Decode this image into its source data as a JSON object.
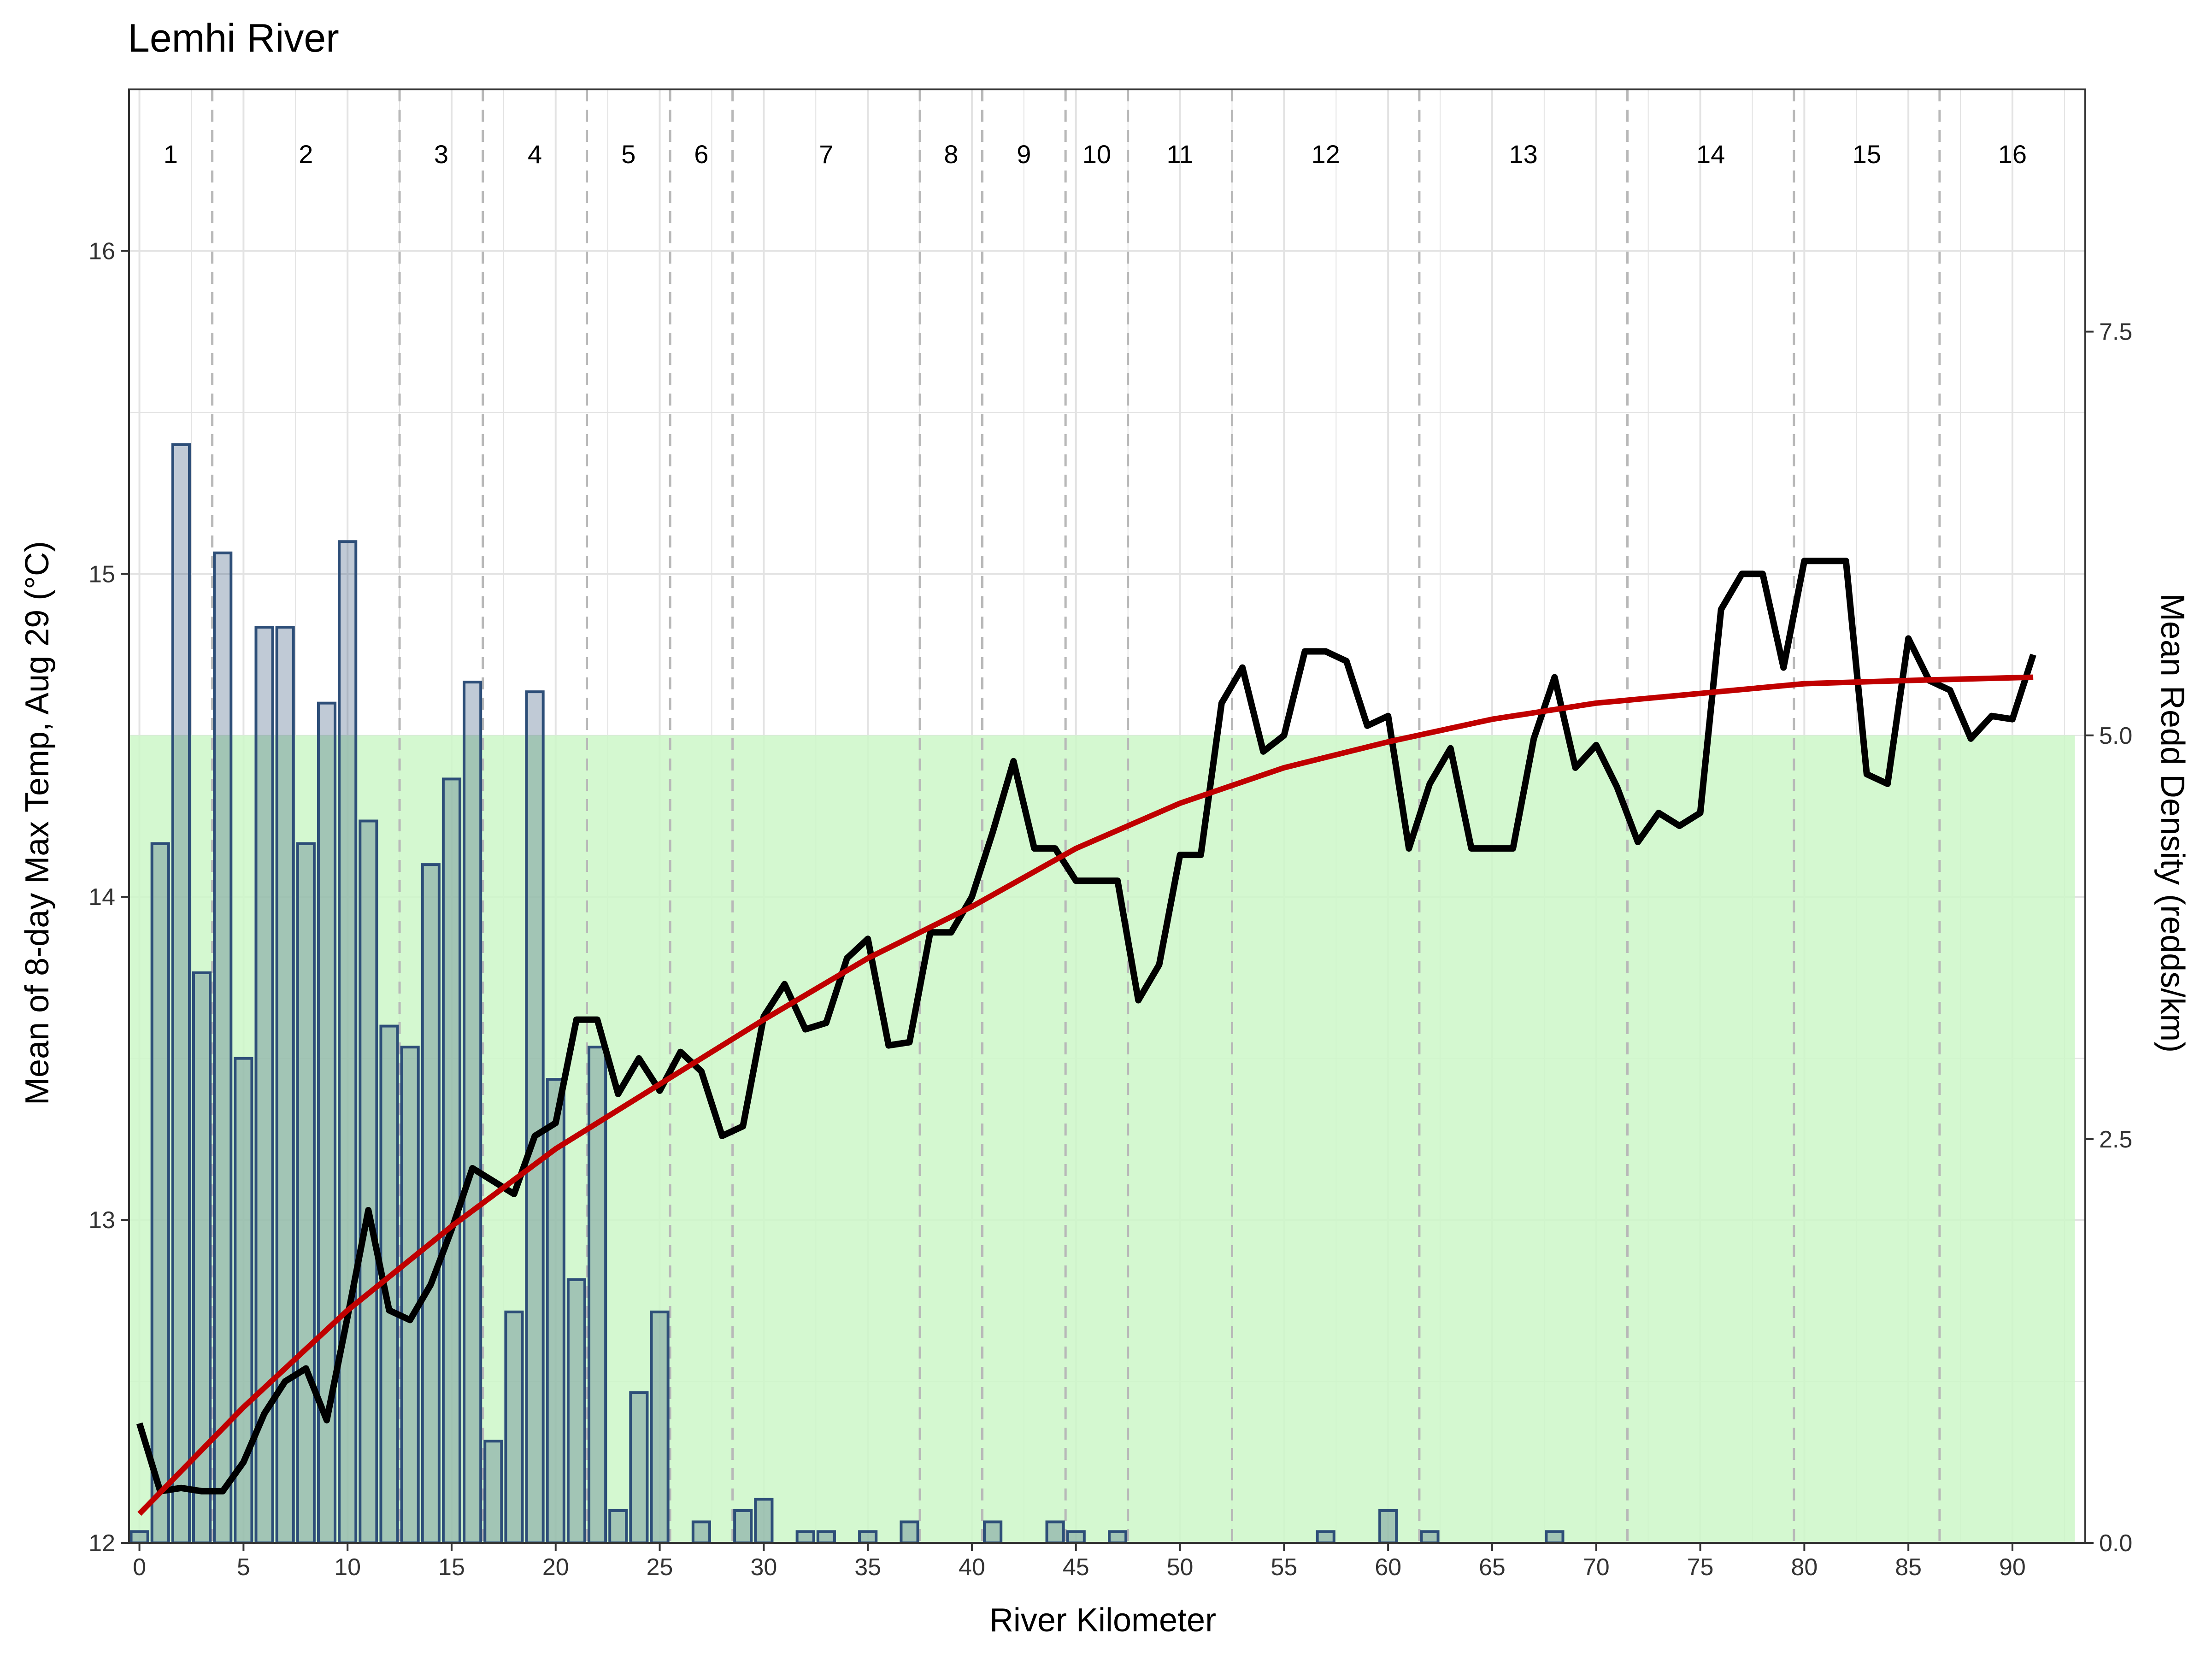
{
  "chart_data": {
    "type": "bar+line",
    "title": "Lemhi River",
    "xlabel": "River Kilometer",
    "ylabel_left": "Mean of 8-day Max Temp, Aug 29 (°C)",
    "ylabel_right": "Mean Redd Density (redds/km)",
    "xlim": [
      -0.5,
      93.5
    ],
    "ylim_left": [
      12,
      16.5
    ],
    "ylim_right": [
      0,
      9
    ],
    "x_ticks": [
      0,
      5,
      10,
      15,
      20,
      25,
      30,
      35,
      40,
      45,
      50,
      55,
      60,
      65,
      70,
      75,
      80,
      85,
      90
    ],
    "x_tick_labels": [
      "0",
      "5",
      "10",
      "15",
      "20",
      "25",
      "30",
      "35",
      "40",
      "45",
      "50",
      "55",
      "60",
      "65",
      "70",
      "75",
      "80",
      "85",
      "90"
    ],
    "y_left_ticks": [
      12,
      13,
      14,
      15,
      16
    ],
    "y_left_tick_labels": [
      "12",
      "13",
      "14",
      "15",
      "16"
    ],
    "y_right_ticks": [
      0,
      2.5,
      5,
      7.5
    ],
    "y_right_tick_labels": [
      "0.0",
      "2.5",
      "5.0",
      "7.5"
    ],
    "grid": true,
    "shaded_band": {
      "axis": "left",
      "y_range": [
        12,
        14.5
      ],
      "x_range": [
        -0.5,
        93
      ],
      "color": "#ccf7c8"
    },
    "reach_boundaries": [
      3.5,
      12.5,
      16.5,
      21.5,
      25.5,
      28.5,
      37.5,
      40.5,
      44.5,
      47.5,
      52.5,
      61.5,
      71.5,
      79.5,
      86.5
    ],
    "reaches": [
      {
        "label": "1",
        "x": 1.5
      },
      {
        "label": "2",
        "x": 8
      },
      {
        "label": "3",
        "x": 14.5
      },
      {
        "label": "4",
        "x": 19
      },
      {
        "label": "5",
        "x": 23.5
      },
      {
        "label": "6",
        "x": 27
      },
      {
        "label": "7",
        "x": 33
      },
      {
        "label": "8",
        "x": 39
      },
      {
        "label": "9",
        "x": 42.5
      },
      {
        "label": "10",
        "x": 46
      },
      {
        "label": "11",
        "x": 50
      },
      {
        "label": "12",
        "x": 57
      },
      {
        "label": "13",
        "x": 66.5
      },
      {
        "label": "14",
        "x": 75.5
      },
      {
        "label": "15",
        "x": 83
      },
      {
        "label": "16",
        "x": 90
      }
    ],
    "series": [
      {
        "type": "bar",
        "axis": "right",
        "color": "#2d4e78",
        "x": [
          0,
          1,
          2,
          3,
          4,
          5,
          6,
          7,
          8,
          9,
          10,
          11,
          12,
          13,
          14,
          15,
          16,
          17,
          18,
          19,
          20,
          21,
          22,
          23,
          24,
          25,
          27,
          29,
          30,
          32,
          33,
          35,
          37,
          41,
          44,
          45,
          47,
          57,
          60,
          62,
          68
        ],
        "values": [
          0.07,
          4.33,
          6.8,
          3.53,
          6.13,
          3.0,
          5.67,
          5.67,
          4.33,
          5.2,
          6.2,
          4.47,
          3.2,
          3.07,
          4.2,
          4.73,
          5.33,
          0.63,
          1.43,
          5.27,
          2.87,
          1.63,
          3.07,
          0.2,
          0.93,
          1.43,
          0.13,
          0.2,
          0.27,
          0.07,
          0.07,
          0.07,
          0.13,
          0.13,
          0.13,
          0.07,
          0.07,
          0.07,
          0.2,
          0.07,
          0.07
        ]
      },
      {
        "type": "line",
        "axis": "left",
        "color": "#000000",
        "x": [
          0,
          1,
          2,
          3,
          4,
          5,
          6,
          7,
          8,
          9,
          10,
          11,
          12,
          13,
          14,
          15,
          16,
          17,
          18,
          19,
          20,
          21,
          22,
          23,
          24,
          25,
          26,
          27,
          28,
          29,
          30,
          31,
          32,
          33,
          34,
          35,
          36,
          37,
          38,
          39,
          40,
          41,
          42,
          43,
          44,
          45,
          46,
          47,
          48,
          49,
          50,
          51,
          52,
          53,
          54,
          55,
          56,
          57,
          58,
          59,
          60,
          61,
          62,
          63,
          64,
          65,
          66,
          67,
          68,
          69,
          70,
          71,
          72,
          73,
          74,
          75,
          76,
          77,
          78,
          79,
          80,
          81,
          82,
          83,
          84,
          85,
          86,
          87,
          88,
          89,
          90,
          91
        ],
        "values": [
          12.37,
          12.16,
          12.17,
          12.16,
          12.16,
          12.25,
          12.4,
          12.5,
          12.54,
          12.38,
          12.7,
          13.03,
          12.72,
          12.69,
          12.8,
          12.97,
          13.16,
          13.12,
          13.08,
          13.26,
          13.3,
          13.62,
          13.62,
          13.39,
          13.5,
          13.4,
          13.52,
          13.46,
          13.26,
          13.29,
          13.63,
          13.73,
          13.59,
          13.61,
          13.81,
          13.87,
          13.54,
          13.55,
          13.89,
          13.89,
          14.0,
          14.2,
          14.42,
          14.15,
          14.15,
          14.05,
          14.05,
          14.05,
          13.68,
          13.79,
          14.13,
          14.13,
          14.6,
          14.71,
          14.45,
          14.5,
          14.76,
          14.76,
          14.73,
          14.53,
          14.56,
          14.15,
          14.35,
          14.46,
          14.15,
          14.15,
          14.15,
          14.49,
          14.68,
          14.4,
          14.47,
          14.34,
          14.17,
          14.26,
          14.22,
          14.26,
          14.89,
          15.0,
          15.0,
          14.71,
          15.04,
          15.04,
          15.04,
          14.38,
          14.35,
          14.8,
          14.67,
          14.64,
          14.49,
          14.56,
          14.55,
          14.75
        ]
      },
      {
        "type": "line",
        "axis": "left",
        "color": "#c00000",
        "x": [
          0,
          5,
          10,
          15,
          20,
          25,
          30,
          35,
          40,
          45,
          50,
          55,
          60,
          65,
          70,
          75,
          80,
          85,
          91
        ],
        "values": [
          12.09,
          12.42,
          12.72,
          12.98,
          13.22,
          13.42,
          13.62,
          13.81,
          13.97,
          14.15,
          14.29,
          14.4,
          14.48,
          14.55,
          14.6,
          14.63,
          14.66,
          14.67,
          14.68
        ]
      }
    ]
  }
}
